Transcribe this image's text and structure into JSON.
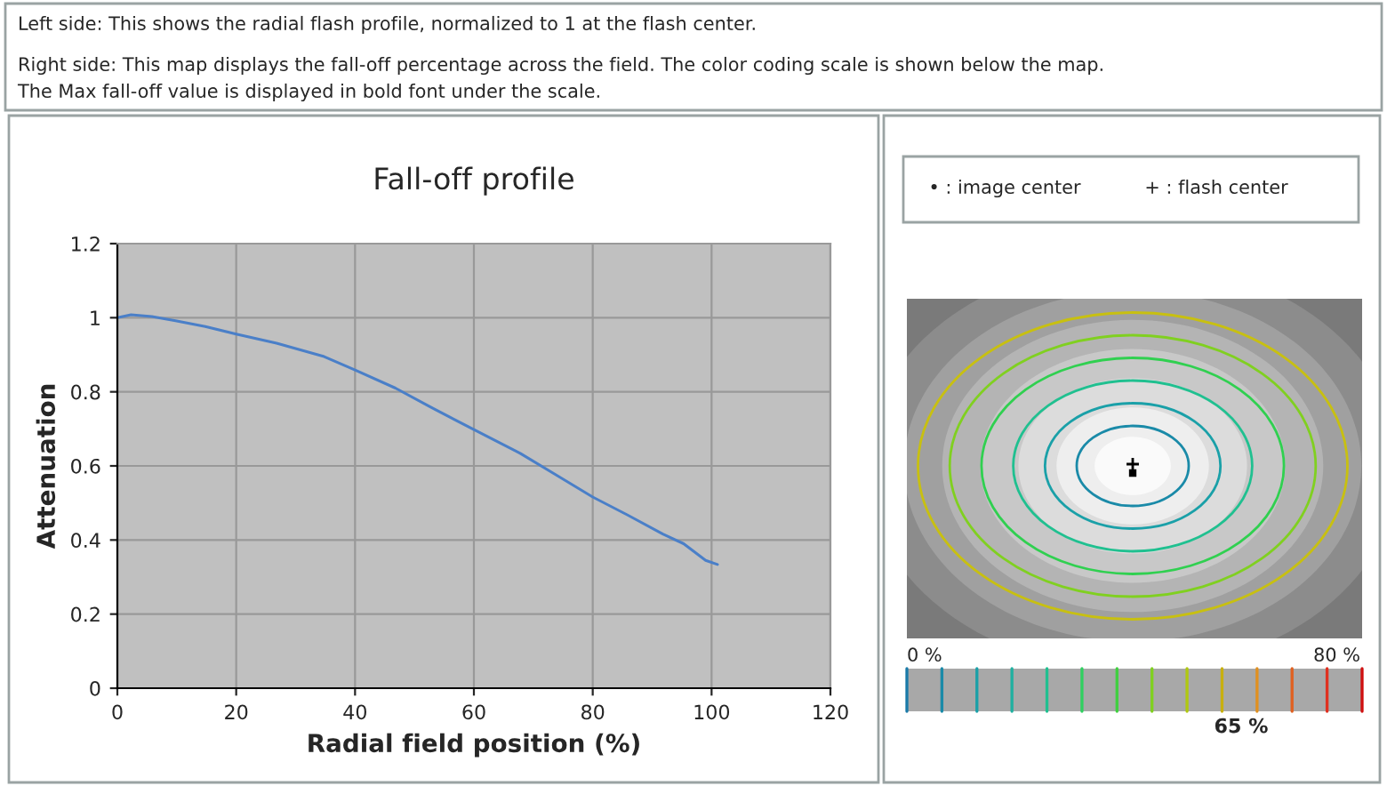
{
  "chart_data": [
    {
      "type": "line",
      "title": "Fall-off profile",
      "xlabel": "Radial field position (%)",
      "ylabel": "Attenuation",
      "annotations": [
        "Left side: This shows the radial flash profile, normalized to 1 at the flash center.",
        "Right side: This map displays the fall-off percentage across the field. The color coding scale is shown below the map.",
        "The Max fall-off value is displayed in bold font under the scale."
      ],
      "series": [
        {
          "color": "#4a7fc8",
          "x": [
            0,
            2.3,
            5.8,
            9.8,
            14.8,
            20,
            26.8,
            34.8,
            40,
            46.8,
            52.8,
            60,
            67.8,
            73.8,
            80,
            85.8,
            91.8,
            95.3,
            99,
            101
          ],
          "values": [
            1.0,
            1.008,
            1.003,
            0.992,
            0.976,
            0.956,
            0.931,
            0.895,
            0.859,
            0.81,
            0.758,
            0.698,
            0.634,
            0.576,
            0.516,
            0.468,
            0.416,
            0.39,
            0.345,
            0.334
          ]
        }
      ],
      "xlim": [
        0,
        120
      ],
      "xticks": [
        0,
        20,
        40,
        60,
        80,
        100,
        120
      ],
      "ylim": [
        0,
        1.2
      ],
      "yticks": [
        0,
        0.2,
        0.4,
        0.6,
        0.8,
        1,
        1.2
      ],
      "grid": true,
      "marker": "none",
      "line_style": "solid"
    },
    {
      "type": "other",
      "annotations": [
        "• : image center",
        "+ : flash center",
        "0 %",
        "80 %",
        "65 %"
      ]
    }
  ]
}
